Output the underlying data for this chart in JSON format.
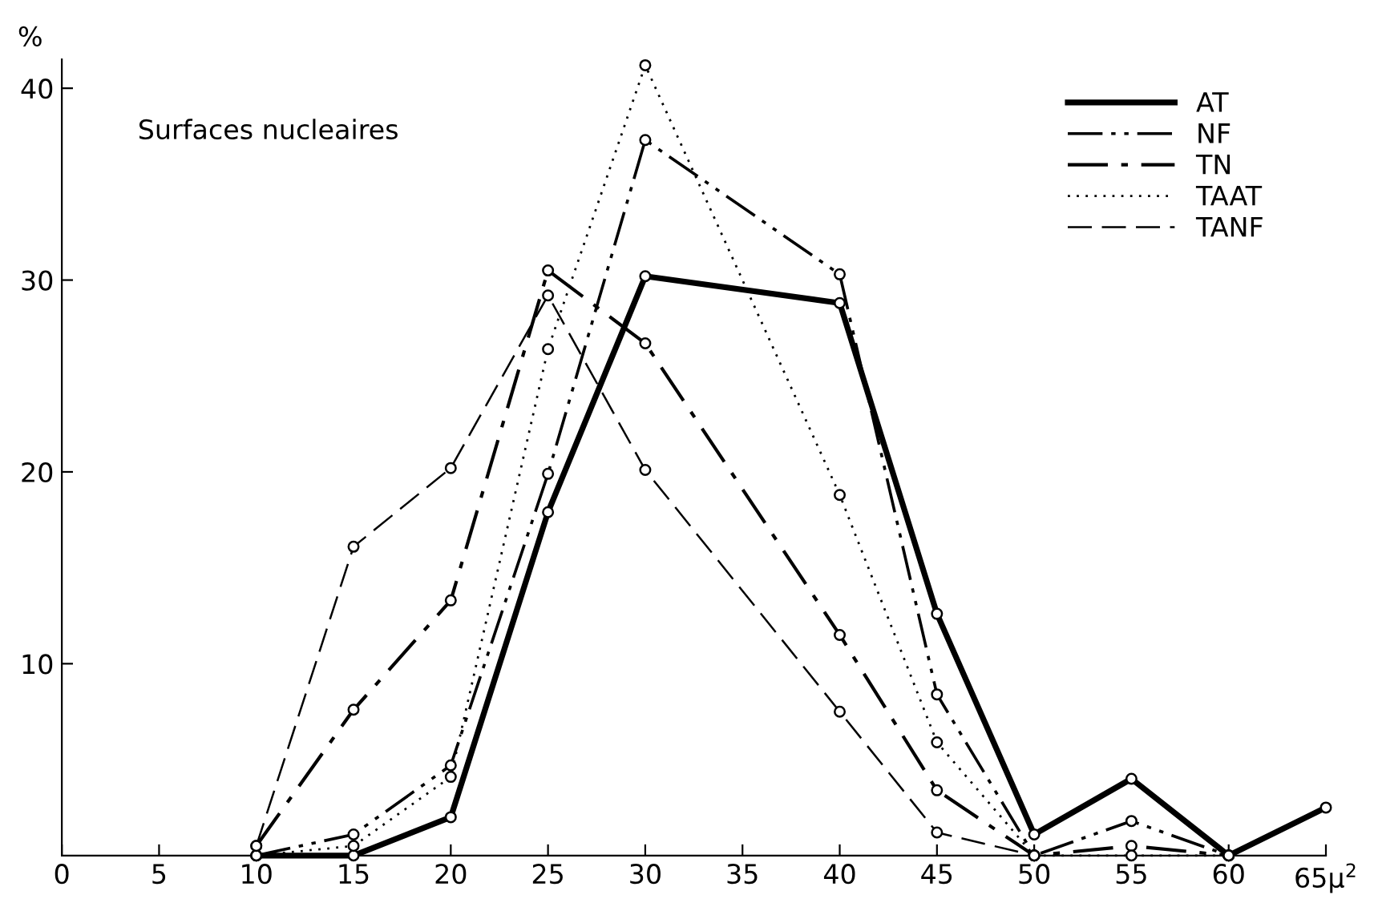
{
  "chart_data": {
    "type": "line",
    "ylabel": "%",
    "annotations": [
      "Surfaces nucleaires"
    ],
    "x": [
      10,
      15,
      20,
      25,
      30,
      40,
      45,
      50,
      55,
      60,
      65
    ],
    "series": [
      {
        "name": "AT",
        "color": "#000000",
        "line_style": "solid",
        "values": [
          0,
          0,
          2.0,
          17.9,
          30.2,
          28.8,
          12.6,
          1.1,
          4.0,
          0,
          2.5
        ]
      },
      {
        "name": "NF",
        "color": "#000000",
        "line_style": "dashdotdot",
        "values": [
          0,
          1.1,
          4.7,
          19.9,
          37.3,
          30.3,
          8.4,
          0,
          1.8,
          0,
          null
        ]
      },
      {
        "name": "TN",
        "color": "#000000",
        "line_style": "dashdot",
        "values": [
          0.5,
          7.6,
          13.3,
          30.5,
          26.7,
          11.5,
          3.4,
          0,
          0.5,
          0,
          null
        ]
      },
      {
        "name": "TAAT",
        "color": "#000000",
        "line_style": "dotted",
        "values": [
          0,
          0.5,
          4.1,
          26.4,
          41.2,
          18.8,
          5.9,
          0,
          0,
          0,
          null
        ]
      },
      {
        "name": "TANF",
        "color": "#000000",
        "line_style": "dashed",
        "values": [
          0.5,
          16.1,
          20.2,
          29.2,
          20.1,
          7.5,
          1.2,
          0,
          null,
          null,
          null
        ]
      }
    ],
    "xlim": [
      0,
      65
    ],
    "ylim": [
      0,
      41.5
    ],
    "xticks": [
      0,
      5,
      10,
      15,
      20,
      25,
      30,
      35,
      40,
      45,
      50,
      55,
      60,
      {
        "value": 65,
        "label": "65μ$^{2}$"
      }
    ],
    "yticks": [
      10,
      20,
      30,
      40
    ],
    "marker": "circle",
    "grid": false,
    "legend": "top right"
  }
}
